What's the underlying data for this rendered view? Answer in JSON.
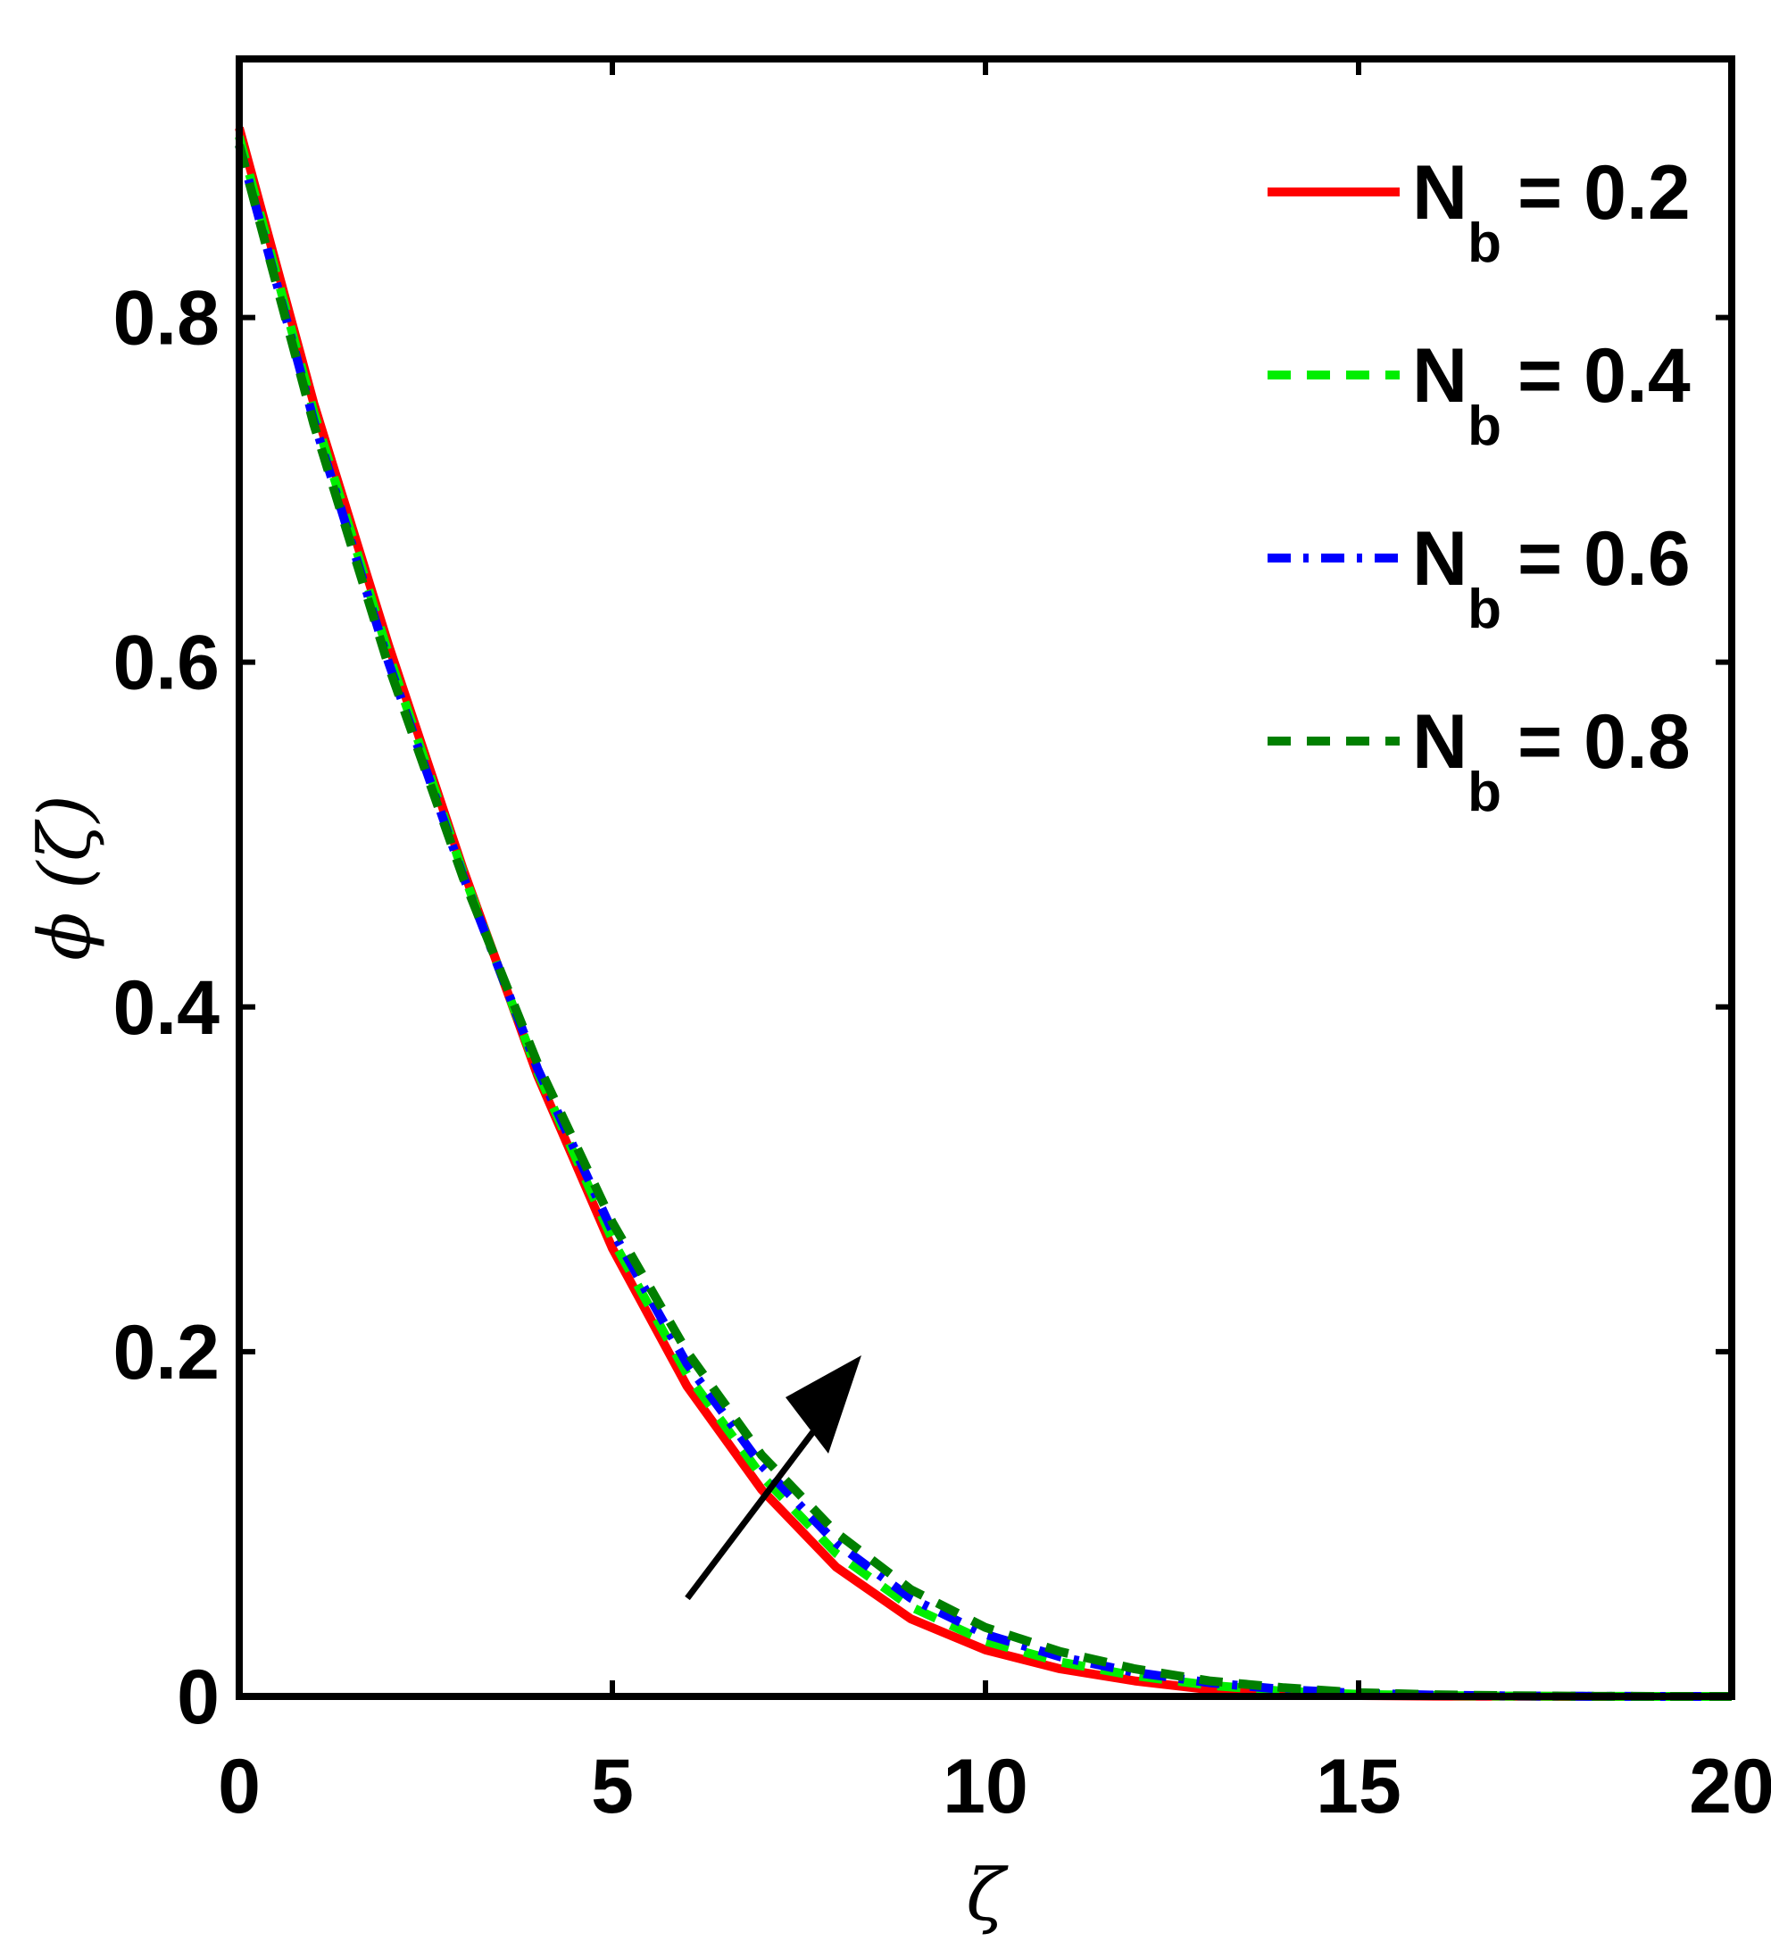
{
  "chart_data": {
    "type": "line",
    "title": "",
    "xlabel": "ζ",
    "ylabel": "ϕ (ζ)",
    "xlim": [
      0,
      20
    ],
    "ylim": [
      0,
      0.95
    ],
    "xticks": [
      0,
      5,
      10,
      15,
      20
    ],
    "xtick_labels": [
      "0",
      "5",
      "10",
      "15",
      "20"
    ],
    "yticks": [
      0,
      0.2,
      0.4,
      0.6,
      0.8
    ],
    "ytick_labels": [
      "0",
      "0.2",
      "0.4",
      "0.6",
      "0.8"
    ],
    "grid": false,
    "legend_position": "top-right",
    "annotation": "arrow indicating increasing Nb",
    "x": [
      0,
      1,
      2,
      3,
      4,
      5,
      6,
      7,
      8,
      9,
      10,
      11,
      12,
      13,
      14,
      15,
      16,
      17,
      18,
      19,
      20
    ],
    "series": [
      {
        "name": "Nb = 0.2",
        "legend_main": "N",
        "legend_sub": "b",
        "legend_value": "= 0.2",
        "color": "#ff0000",
        "dash": "solid",
        "values": [
          0.91,
          0.75,
          0.61,
          0.48,
          0.36,
          0.26,
          0.18,
          0.12,
          0.075,
          0.045,
          0.027,
          0.016,
          0.009,
          0.004,
          0.0015,
          0.0005,
          0.0002,
          0.0001,
          0.0,
          0.0,
          0.0
        ]
      },
      {
        "name": "Nb = 0.4",
        "legend_main": "N",
        "legend_sub": "b",
        "legend_value": "= 0.4",
        "color": "#00ee00",
        "dash": "dashed",
        "values": [
          0.905,
          0.745,
          0.605,
          0.478,
          0.362,
          0.265,
          0.187,
          0.128,
          0.083,
          0.052,
          0.032,
          0.02,
          0.012,
          0.0065,
          0.003,
          0.0012,
          0.0005,
          0.0002,
          0.0001,
          0.0,
          0.0
        ]
      },
      {
        "name": "Nb = 0.6",
        "legend_main": "N",
        "legend_sub": "b",
        "legend_value": "= 0.6",
        "color": "#0000ff",
        "dash": "dashdot",
        "values": [
          0.9,
          0.74,
          0.6,
          0.476,
          0.364,
          0.27,
          0.193,
          0.134,
          0.089,
          0.057,
          0.036,
          0.023,
          0.014,
          0.008,
          0.004,
          0.0018,
          0.0008,
          0.0003,
          0.0001,
          0.0,
          0.0
        ]
      },
      {
        "name": "Nb = 0.8",
        "legend_main": "N",
        "legend_sub": "b",
        "legend_value": "= 0.8",
        "color": "#007f00",
        "dash": "dashed",
        "values": [
          0.9,
          0.738,
          0.598,
          0.475,
          0.367,
          0.275,
          0.2,
          0.14,
          0.095,
          0.062,
          0.04,
          0.026,
          0.016,
          0.009,
          0.005,
          0.0022,
          0.001,
          0.0004,
          0.0001,
          0.0,
          0.0
        ]
      }
    ]
  }
}
